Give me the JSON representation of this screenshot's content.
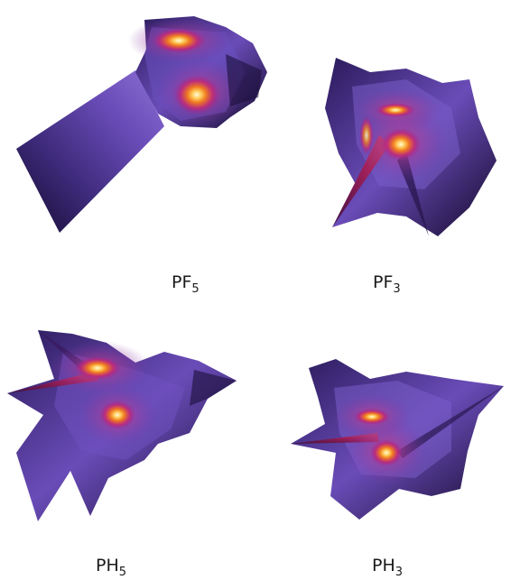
{
  "panels": [
    {
      "id": "pf5",
      "formula": "PF",
      "subscript": "5"
    },
    {
      "id": "pf3",
      "formula": "PF",
      "subscript": "3"
    },
    {
      "id": "ph5",
      "formula": "PH",
      "subscript": "5"
    },
    {
      "id": "ph3",
      "formula": "PH",
      "subscript": "3"
    }
  ],
  "colors": {
    "background": "#ffffff",
    "surface_dark": "#1a0f3a",
    "surface_mid": "#5a3fa0",
    "surface_light": "#8a6cd0",
    "hot_magenta": "#c0308a",
    "hot_orange": "#f08a20",
    "hot_core": "#fff5c0"
  }
}
